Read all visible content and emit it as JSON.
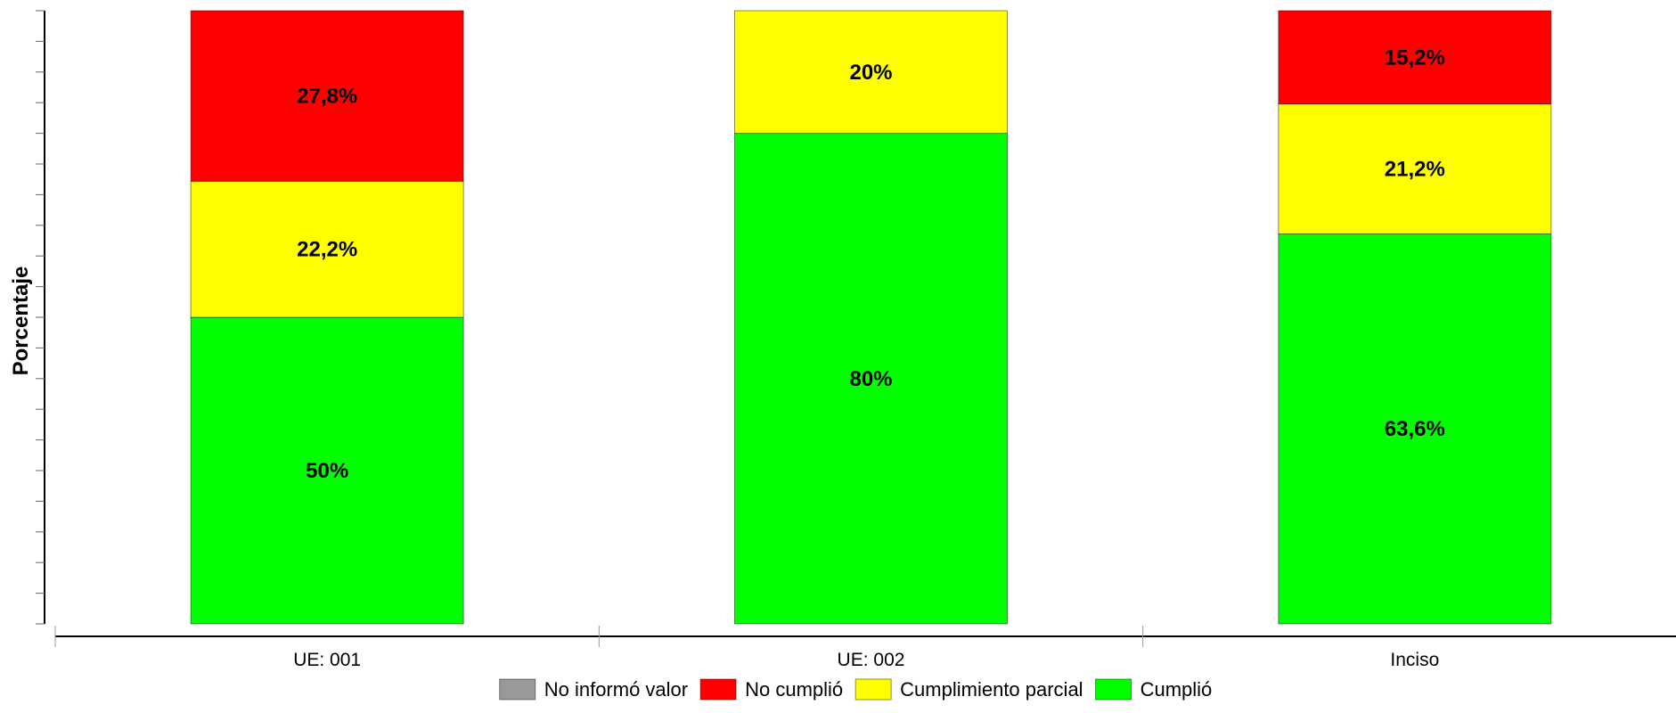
{
  "chart_data": {
    "type": "bar",
    "stacked": true,
    "ylabel": "Porcentaje",
    "ylim": [
      0,
      100
    ],
    "grid": false,
    "legend_position": "bottom",
    "categories": [
      "UE: 001",
      "UE: 002",
      "Inciso"
    ],
    "series": [
      {
        "name": "Cumplió",
        "color": "#00ff00",
        "values": [
          50,
          80,
          63.6
        ],
        "labels": [
          "50%",
          "80%",
          "63,6%"
        ]
      },
      {
        "name": "Cumplimiento parcial",
        "color": "#ffff00",
        "values": [
          22.2,
          20,
          21.2
        ],
        "labels": [
          "22,2%",
          "20%",
          "21,2%"
        ]
      },
      {
        "name": "No cumplió",
        "color": "#ff0000",
        "values": [
          27.8,
          0,
          15.2
        ],
        "labels": [
          "27,8%",
          "",
          "15,2%"
        ]
      },
      {
        "name": "No informó valor",
        "color": "#999999",
        "values": [
          0,
          0,
          0
        ],
        "labels": [
          "",
          "",
          ""
        ]
      }
    ],
    "legend": [
      {
        "name": "No informó valor",
        "color": "#999999"
      },
      {
        "name": "No cumplió",
        "color": "#ff0000"
      },
      {
        "name": "Cumplimiento parcial",
        "color": "#ffff00"
      },
      {
        "name": "Cumplió",
        "color": "#00ff00"
      }
    ]
  }
}
